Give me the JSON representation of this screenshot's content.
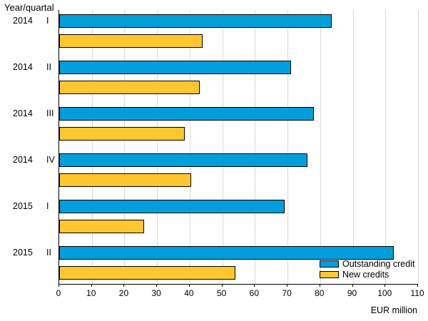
{
  "chart_data": {
    "type": "bar",
    "orientation": "horizontal",
    "title": "Year/quartal",
    "xlabel": "EUR million",
    "xlim": [
      0,
      110
    ],
    "xticks": [
      0,
      10,
      20,
      30,
      40,
      50,
      60,
      70,
      80,
      90,
      100,
      110
    ],
    "grid": "vertical",
    "legend_position": "inside-bottom-right",
    "categories": [
      {
        "year": "2014",
        "quarter": "I"
      },
      {
        "year": "2014",
        "quarter": "II"
      },
      {
        "year": "2014",
        "quarter": "III"
      },
      {
        "year": "2014",
        "quarter": "IV"
      },
      {
        "year": "2015",
        "quarter": "I"
      },
      {
        "year": "2015",
        "quarter": "II"
      }
    ],
    "series": [
      {
        "name": "Outstanding credit",
        "color": "#009EDB",
        "values": [
          83.5,
          71,
          78,
          76,
          69,
          102.5
        ]
      },
      {
        "name": "New credits",
        "color": "#FFC72F",
        "values": [
          44,
          43,
          38.5,
          40.5,
          26,
          54
        ]
      }
    ],
    "colors": {
      "gridline": "#d9d9d9",
      "axis": "#000000",
      "bar_border": "#000000"
    }
  }
}
